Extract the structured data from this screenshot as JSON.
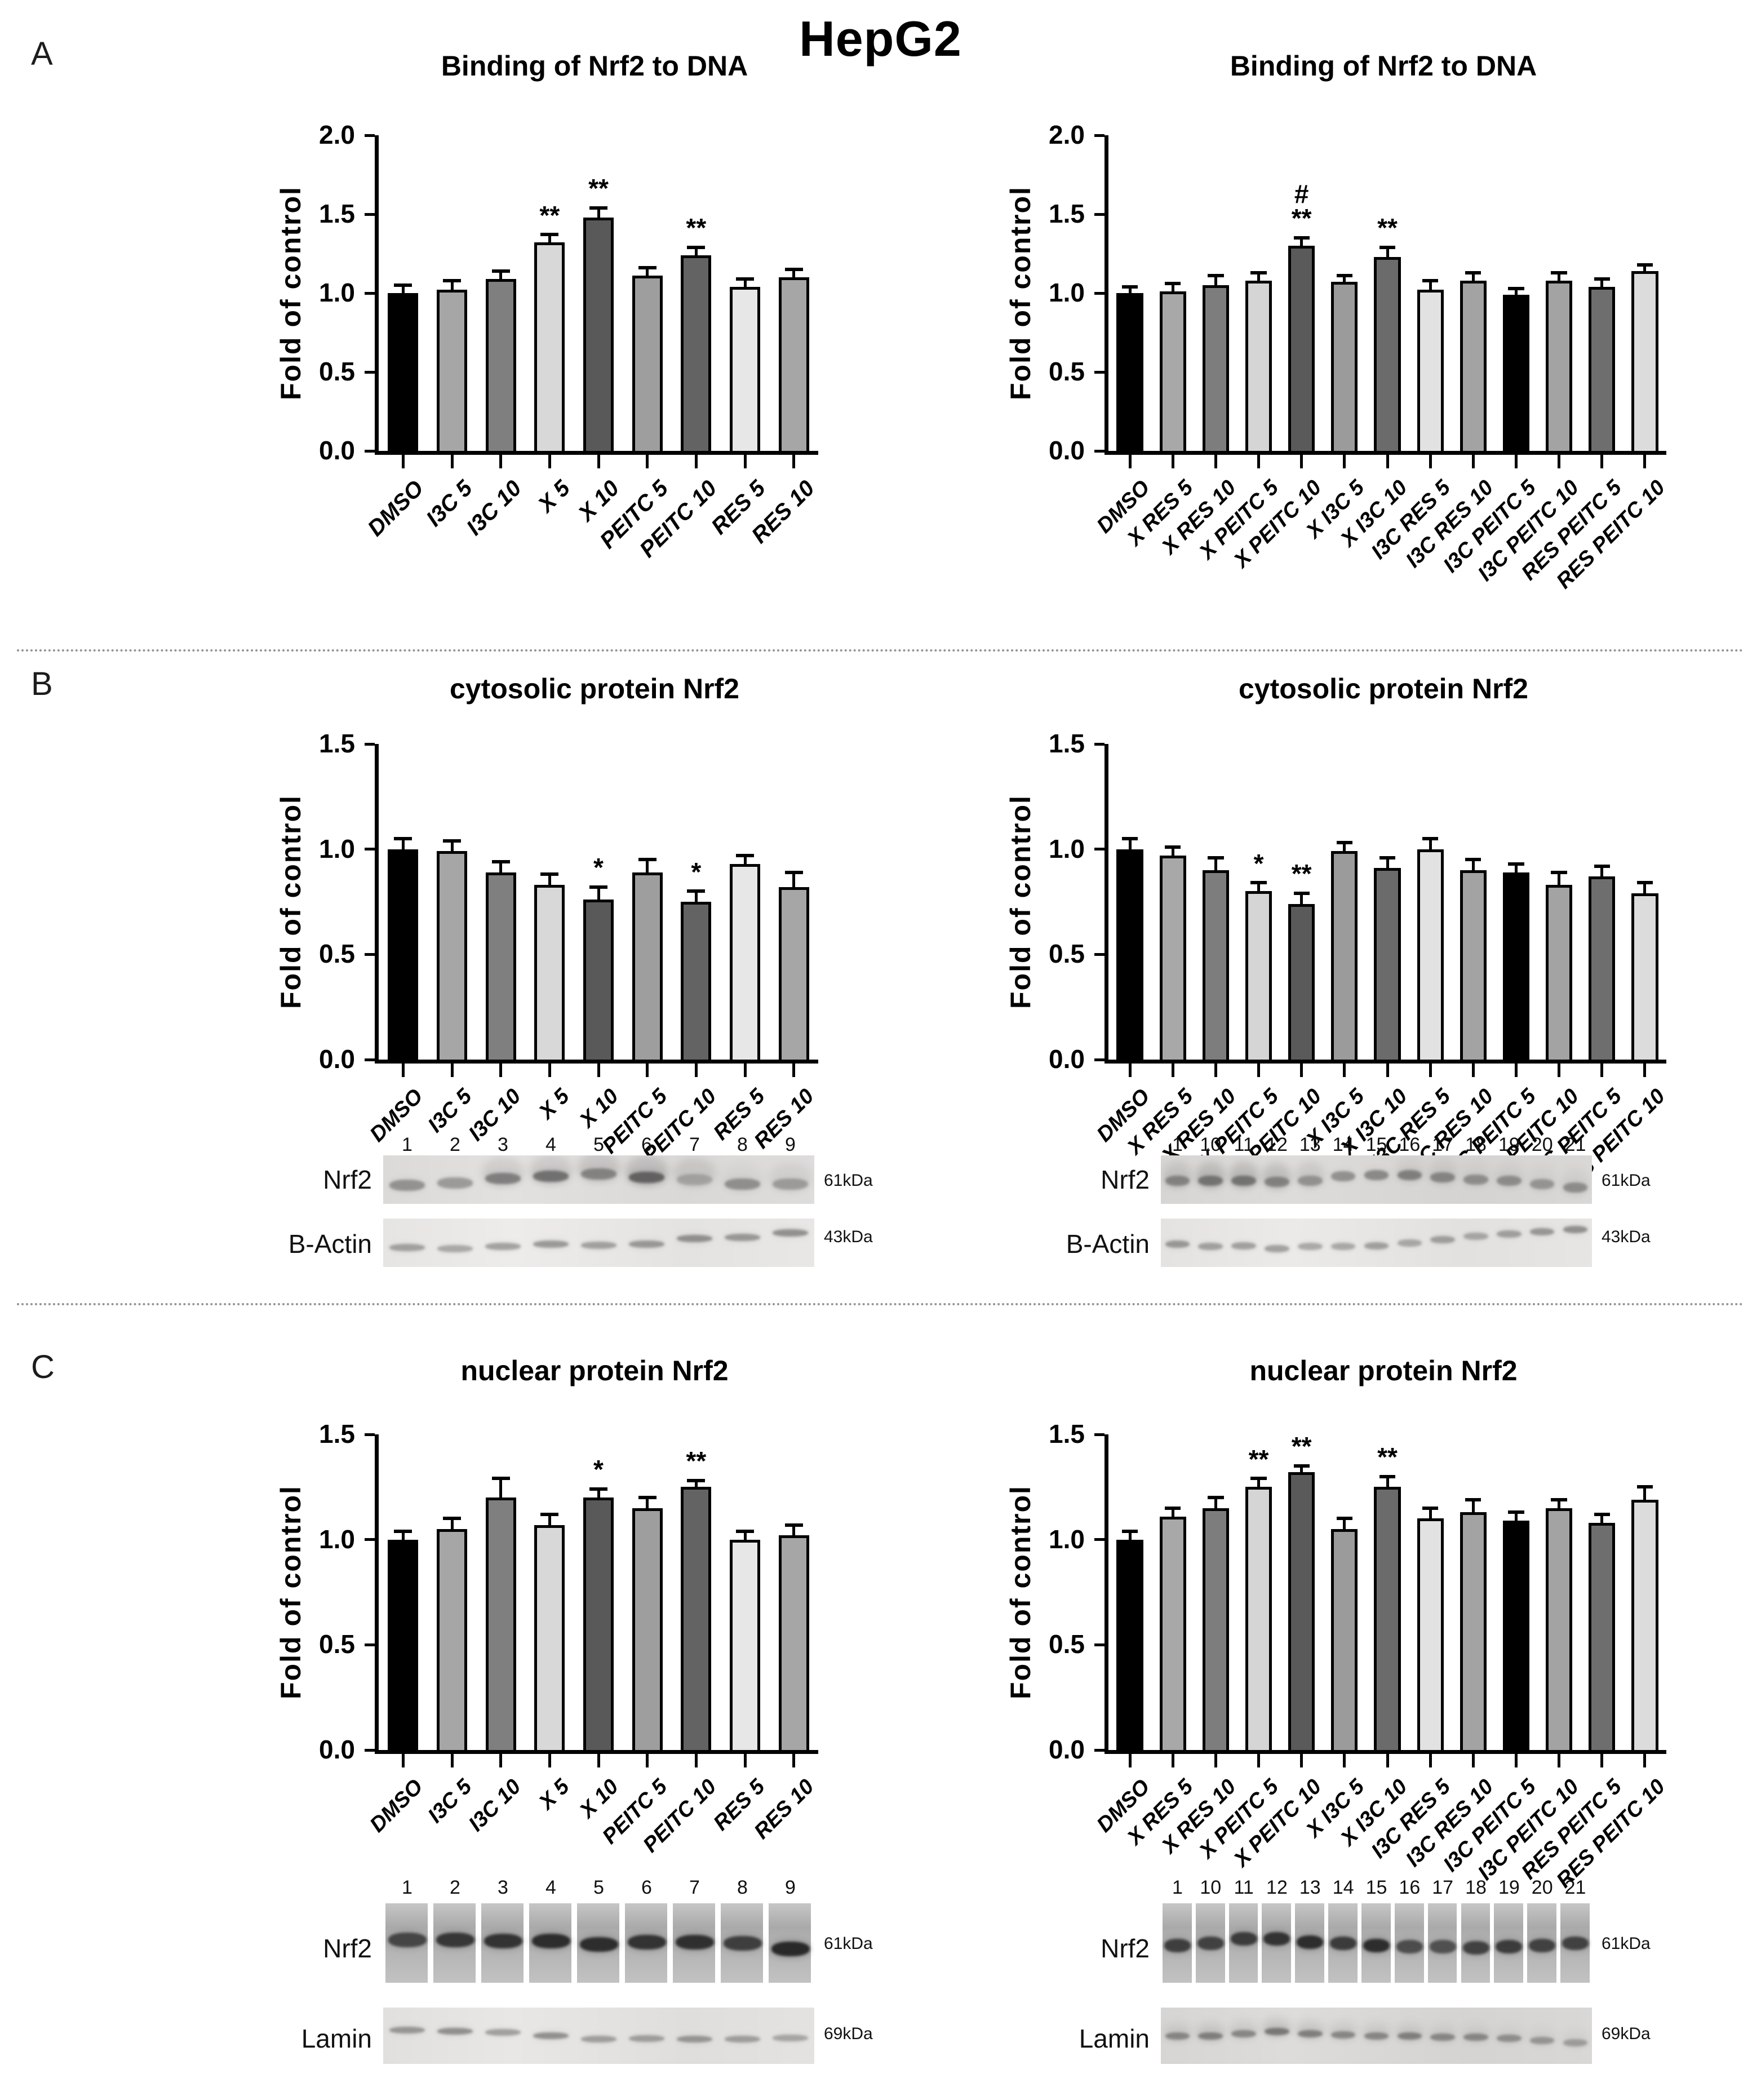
{
  "page": {
    "title": "HepG2",
    "panel_labels": [
      "A",
      "B",
      "C"
    ]
  },
  "chart_data": [
    {
      "id": "binding-single",
      "type": "bar",
      "title": "Binding of Nrf2 to DNA",
      "ylabel": "Fold of control",
      "ylim": [
        0,
        2.0
      ],
      "yticks": [
        "0.0",
        "0.5",
        "1.0",
        "1.5",
        "2.0"
      ],
      "grid": false,
      "legend": "none",
      "categories": [
        "DMSO",
        "I3C 5",
        "I3C 10",
        "X 5",
        "X 10",
        "PEITC 5",
        "PEITC 10",
        "RES 5",
        "RES 10"
      ],
      "values": [
        1.0,
        1.02,
        1.09,
        1.32,
        1.48,
        1.11,
        1.24,
        1.04,
        1.1
      ],
      "errors": [
        0.05,
        0.06,
        0.05,
        0.05,
        0.06,
        0.05,
        0.05,
        0.05,
        0.05
      ],
      "sig": [
        "",
        "",
        "",
        "**",
        "**",
        "",
        "**",
        "",
        ""
      ],
      "colors": [
        "#000000",
        "#a6a6a6",
        "#7f7f7f",
        "#d8d8d8",
        "#595959",
        "#9e9e9e",
        "#636363",
        "#e7e7e7",
        "#a6a6a6"
      ]
    },
    {
      "id": "binding-combo",
      "type": "bar",
      "title": "Binding of Nrf2 to DNA",
      "ylabel": "Fold of control",
      "ylim": [
        0,
        2.0
      ],
      "yticks": [
        "0.0",
        "0.5",
        "1.0",
        "1.5",
        "2.0"
      ],
      "grid": false,
      "legend": "none",
      "categories": [
        "DMSO",
        "X RES 5",
        "X RES 10",
        "X PEITC 5",
        "X PEITC 10",
        "X I3C 5",
        "X I3C 10",
        "I3C RES 5",
        "I3C RES 10",
        "I3C PEITC 5",
        "I3C PEITC 10",
        "RES PEITC 5",
        "RES PEITC 10"
      ],
      "values": [
        1.0,
        1.01,
        1.05,
        1.08,
        1.3,
        1.07,
        1.23,
        1.02,
        1.08,
        0.99,
        1.08,
        1.04,
        1.14
      ],
      "errors": [
        0.04,
        0.05,
        0.06,
        0.05,
        0.05,
        0.04,
        0.06,
        0.06,
        0.05,
        0.04,
        0.05,
        0.05,
        0.04
      ],
      "sig": [
        "",
        "",
        "",
        "",
        "#\n**",
        "",
        "**",
        "",
        "",
        "",
        "",
        "",
        ""
      ],
      "colors": [
        "#000000",
        "#a8a8a8",
        "#7d7d7d",
        "#d5d5d5",
        "#5a5a5a",
        "#9b9b9b",
        "#6b6b6b",
        "#e2e2e2",
        "#a3a3a3",
        "#000000",
        "#a3a3a3",
        "#6e6e6e",
        "#dcdcdc"
      ]
    },
    {
      "id": "cytosolic-single",
      "type": "bar",
      "title": "cytosolic protein Nrf2",
      "ylabel": "Fold of control",
      "ylim": [
        0,
        1.5
      ],
      "yticks": [
        "0.0",
        "0.5",
        "1.0",
        "1.5"
      ],
      "grid": false,
      "legend": "none",
      "categories": [
        "DMSO",
        "I3C 5",
        "I3C 10",
        "X 5",
        "X 10",
        "PEITC 5",
        "PEITC 10",
        "RES 5",
        "RES 10"
      ],
      "values": [
        1.0,
        0.99,
        0.89,
        0.83,
        0.76,
        0.89,
        0.75,
        0.93,
        0.82
      ],
      "errors": [
        0.05,
        0.05,
        0.05,
        0.05,
        0.06,
        0.06,
        0.05,
        0.04,
        0.07
      ],
      "sig": [
        "",
        "",
        "",
        "",
        "*",
        "",
        "*",
        "",
        ""
      ],
      "colors": [
        "#000000",
        "#a6a6a6",
        "#7f7f7f",
        "#d8d8d8",
        "#595959",
        "#9e9e9e",
        "#636363",
        "#e7e7e7",
        "#a6a6a6"
      ]
    },
    {
      "id": "cytosolic-combo",
      "type": "bar",
      "title": "cytosolic protein Nrf2",
      "ylabel": "Fold of control",
      "ylim": [
        0,
        1.5
      ],
      "yticks": [
        "0.0",
        "0.5",
        "1.0",
        "1.5"
      ],
      "grid": false,
      "legend": "none",
      "categories": [
        "DMSO",
        "X RES 5",
        "X RES 10",
        "X PEITC 5",
        "X PEITC 10",
        "X I3C 5",
        "X I3C 10",
        "I3C RES 5",
        "I3C RES 10",
        "I3C PEITC 5",
        "I3C PEITC 10",
        "RES PEITC 5",
        "RES PEITC 10"
      ],
      "values": [
        1.0,
        0.97,
        0.9,
        0.8,
        0.74,
        0.99,
        0.91,
        1.0,
        0.9,
        0.89,
        0.83,
        0.87,
        0.79
      ],
      "errors": [
        0.05,
        0.04,
        0.06,
        0.04,
        0.05,
        0.04,
        0.05,
        0.05,
        0.05,
        0.04,
        0.06,
        0.05,
        0.05
      ],
      "sig": [
        "",
        "",
        "",
        "*",
        "**",
        "",
        "",
        "",
        "",
        "",
        "",
        "",
        ""
      ],
      "colors": [
        "#000000",
        "#a8a8a8",
        "#7d7d7d",
        "#d5d5d5",
        "#5a5a5a",
        "#9b9b9b",
        "#6b6b6b",
        "#e2e2e2",
        "#a3a3a3",
        "#000000",
        "#a3a3a3",
        "#6e6e6e",
        "#dcdcdc"
      ]
    },
    {
      "id": "nuclear-single",
      "type": "bar",
      "title": "nuclear protein Nrf2",
      "ylabel": "Fold of control",
      "ylim": [
        0,
        1.5
      ],
      "yticks": [
        "0.0",
        "0.5",
        "1.0",
        "1.5"
      ],
      "grid": false,
      "legend": "none",
      "categories": [
        "DMSO",
        "I3C 5",
        "I3C 10",
        "X 5",
        "X 10",
        "PEITC 5",
        "PEITC 10",
        "RES 5",
        "RES 10"
      ],
      "values": [
        1.0,
        1.05,
        1.2,
        1.07,
        1.2,
        1.15,
        1.25,
        1.0,
        1.02
      ],
      "errors": [
        0.04,
        0.05,
        0.09,
        0.05,
        0.04,
        0.05,
        0.03,
        0.04,
        0.05
      ],
      "sig": [
        "",
        "",
        "",
        "",
        "*",
        "",
        "**",
        "",
        ""
      ],
      "colors": [
        "#000000",
        "#a6a6a6",
        "#7f7f7f",
        "#d8d8d8",
        "#595959",
        "#9e9e9e",
        "#636363",
        "#e7e7e7",
        "#a6a6a6"
      ]
    },
    {
      "id": "nuclear-combo",
      "type": "bar",
      "title": "nuclear protein Nrf2",
      "ylabel": "Fold of control",
      "ylim": [
        0,
        1.5
      ],
      "yticks": [
        "0.0",
        "0.5",
        "1.0",
        "1.5"
      ],
      "grid": false,
      "legend": "none",
      "categories": [
        "DMSO",
        "X RES 5",
        "X RES 10",
        "X PEITC 5",
        "X PEITC 10",
        "X I3C 5",
        "X I3C 10",
        "I3C RES 5",
        "I3C RES 10",
        "I3C PEITC 5",
        "I3C PEITC 10",
        "RES PEITC 5",
        "RES PEITC 10"
      ],
      "values": [
        1.0,
        1.11,
        1.15,
        1.25,
        1.32,
        1.05,
        1.25,
        1.1,
        1.13,
        1.09,
        1.15,
        1.08,
        1.19
      ],
      "errors": [
        0.04,
        0.04,
        0.05,
        0.04,
        0.03,
        0.05,
        0.05,
        0.05,
        0.06,
        0.04,
        0.04,
        0.04,
        0.06
      ],
      "sig": [
        "",
        "",
        "",
        "**",
        "**",
        "",
        "**",
        "",
        "",
        "",
        "",
        "",
        ""
      ],
      "colors": [
        "#000000",
        "#a8a8a8",
        "#7d7d7d",
        "#d5d5d5",
        "#5a5a5a",
        "#9b9b9b",
        "#6b6b6b",
        "#e2e2e2",
        "#a3a3a3",
        "#000000",
        "#a3a3a3",
        "#6e6e6e",
        "#dcdcdc"
      ]
    }
  ],
  "blots": {
    "b_left": {
      "lane_labels": [
        "1",
        "2",
        "3",
        "4",
        "5",
        "6",
        "7",
        "8",
        "9"
      ],
      "rows": [
        {
          "label": "Nrf2",
          "marker": "61kDa",
          "bg": "#e3e1df",
          "strips": false,
          "band_h": 20,
          "band_color": "#4a4a4a",
          "intensities": [
            0.5,
            0.45,
            0.6,
            0.7,
            0.55,
            0.8,
            0.3,
            0.5,
            0.4
          ],
          "dy": [
            10,
            6,
            -2,
            -6,
            -10,
            -4,
            0,
            8,
            8
          ],
          "smear": [
            0,
            0,
            0.3,
            0.35,
            0.4,
            0.5,
            0.35,
            0.1,
            0.2
          ]
        },
        {
          "label": "B-Actin",
          "marker": "43kDa",
          "bg": "#edecea",
          "strips": false,
          "band_h": 13,
          "band_color": "#4a4a4a",
          "intensities": [
            0.45,
            0.4,
            0.45,
            0.5,
            0.45,
            0.5,
            0.55,
            0.5,
            0.55
          ],
          "dy": [
            8,
            10,
            6,
            2,
            4,
            2,
            -8,
            -10,
            -18
          ],
          "smear": [
            0,
            0,
            0,
            0,
            0,
            0,
            0,
            0,
            0
          ]
        }
      ]
    },
    "b_right": {
      "lane_labels": [
        "1",
        "10",
        "11",
        "12",
        "13",
        "14",
        "15",
        "16",
        "17",
        "18",
        "19",
        "20",
        "21"
      ],
      "rows": [
        {
          "label": "Nrf2",
          "marker": "61kDa",
          "bg": "#dedcda",
          "strips": false,
          "band_h": 18,
          "band_color": "#4a4a4a",
          "intensities": [
            0.55,
            0.65,
            0.65,
            0.55,
            0.45,
            0.5,
            0.55,
            0.6,
            0.55,
            0.5,
            0.5,
            0.45,
            0.5
          ],
          "dy": [
            2,
            2,
            2,
            4,
            2,
            -6,
            -8,
            -8,
            -4,
            0,
            2,
            8,
            14
          ],
          "smear": [
            0.35,
            0.5,
            0.5,
            0.45,
            0.3,
            0,
            0,
            0.15,
            0.2,
            0.1,
            0.15,
            0.1,
            0.15
          ]
        },
        {
          "label": "B-Actin",
          "marker": "43kDa",
          "bg": "#eceae8",
          "strips": false,
          "band_h": 13,
          "band_color": "#4a4a4a",
          "intensities": [
            0.5,
            0.45,
            0.45,
            0.45,
            0.4,
            0.4,
            0.45,
            0.4,
            0.45,
            0.4,
            0.45,
            0.5,
            0.55
          ],
          "dy": [
            2,
            6,
            5,
            10,
            6,
            6,
            5,
            0,
            -6,
            -12,
            -16,
            -20,
            -24
          ],
          "smear": [
            0,
            0,
            0,
            0,
            0,
            0,
            0,
            0,
            0,
            0,
            0,
            0,
            0
          ]
        }
      ]
    },
    "c_left": {
      "lane_labels": [
        "1",
        "2",
        "3",
        "4",
        "5",
        "6",
        "7",
        "8",
        "9"
      ],
      "rows": [
        {
          "label": "Nrf2",
          "marker": "61kDa",
          "bg": "#ffffff",
          "strips": true,
          "band_h": 26,
          "band_color": "#222222",
          "intensities": [
            0.75,
            0.85,
            0.88,
            0.92,
            0.92,
            0.88,
            0.9,
            0.8,
            0.95
          ],
          "dy": [
            -6,
            -6,
            -4,
            -4,
            2,
            -2,
            -2,
            0,
            10
          ],
          "smear": [
            0,
            0,
            0,
            0,
            0,
            0,
            0,
            0,
            0
          ]
        },
        {
          "label": "Lamin",
          "marker": "69kDa",
          "bg": "#e8e7e5",
          "strips": false,
          "band_h": 12,
          "band_color": "#4a4a4a",
          "intensities": [
            0.5,
            0.55,
            0.45,
            0.55,
            0.45,
            0.45,
            0.5,
            0.45,
            0.4
          ],
          "dy": [
            -10,
            -8,
            -6,
            0,
            6,
            5,
            6,
            6,
            4
          ],
          "smear": [
            0,
            0,
            0,
            0,
            0,
            0,
            0,
            0,
            0
          ]
        }
      ]
    },
    "c_right": {
      "lane_labels": [
        "1",
        "10",
        "11",
        "12",
        "13",
        "14",
        "15",
        "16",
        "17",
        "18",
        "19",
        "20",
        "21"
      ],
      "rows": [
        {
          "label": "Nrf2",
          "marker": "61kDa",
          "bg": "#ffffff",
          "strips": true,
          "band_h": 24,
          "band_color": "#222222",
          "intensities": [
            0.8,
            0.78,
            0.82,
            0.88,
            0.92,
            0.82,
            0.92,
            0.7,
            0.68,
            0.78,
            0.82,
            0.78,
            0.78
          ],
          "dy": [
            4,
            0,
            -8,
            -8,
            -2,
            0,
            4,
            6,
            6,
            8,
            6,
            4,
            0
          ],
          "smear": [
            0,
            0,
            0,
            0,
            0,
            0,
            0,
            0,
            0,
            0,
            0,
            0,
            0
          ]
        },
        {
          "label": "Lamin",
          "marker": "69kDa",
          "bg": "#dddcda",
          "strips": false,
          "band_h": 13,
          "band_color": "#4a4a4a",
          "intensities": [
            0.55,
            0.6,
            0.55,
            0.65,
            0.6,
            0.55,
            0.55,
            0.6,
            0.55,
            0.55,
            0.5,
            0.45,
            0.4
          ],
          "dy": [
            0,
            0,
            -4,
            -8,
            -4,
            -2,
            0,
            0,
            2,
            2,
            4,
            8,
            12
          ],
          "smear": [
            0.2,
            0.25,
            0.2,
            0.3,
            0.25,
            0.2,
            0.2,
            0.2,
            0.15,
            0.15,
            0.1,
            0.1,
            0.1
          ]
        }
      ]
    }
  }
}
